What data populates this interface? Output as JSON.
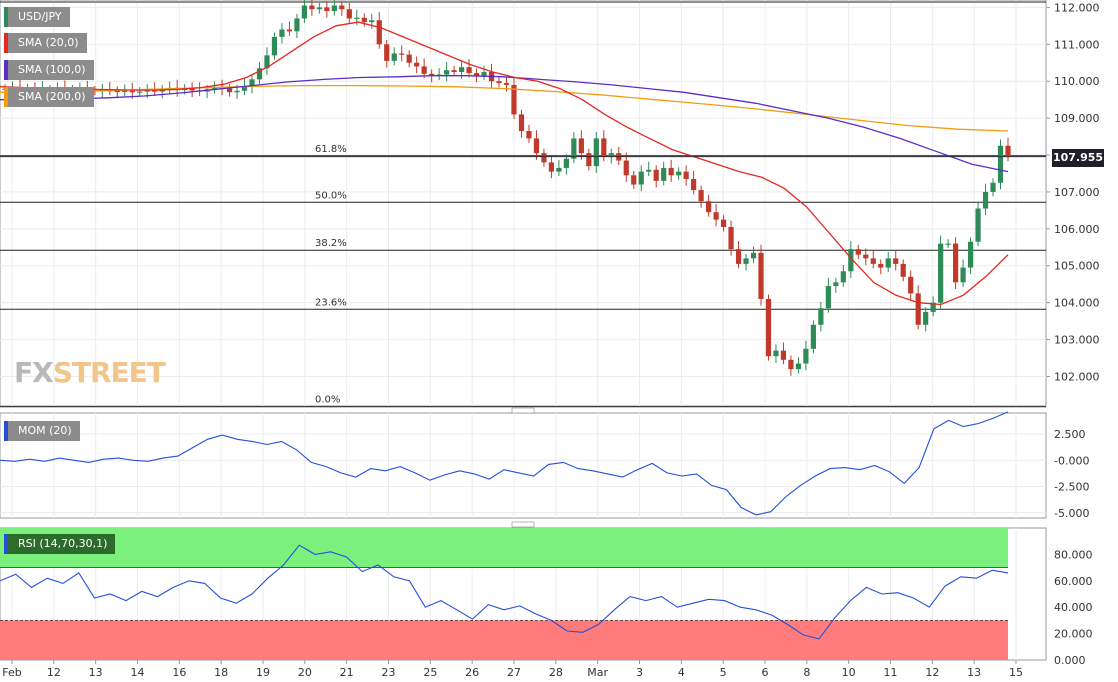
{
  "chart_data": {
    "type": "candlestick",
    "symbol": "USD/JPY",
    "last_price": "107.955",
    "price_axis": {
      "ylim": [
        101.2,
        112.2
      ],
      "ticks": [
        "112.000",
        "111.000",
        "110.000",
        "109.000",
        "108.000",
        "107.000",
        "106.000",
        "105.000",
        "104.000",
        "103.000",
        "102.000"
      ]
    },
    "x_labels": [
      "Feb",
      "12",
      "13",
      "14",
      "16",
      "18",
      "19",
      "20",
      "21",
      "23",
      "25",
      "26",
      "27",
      "28",
      "Mar",
      "3",
      "4",
      "5",
      "6",
      "8",
      "10",
      "11",
      "12",
      "13",
      "15"
    ],
    "legend": [
      "USD/JPY",
      "SMA (20,0)",
      "SMA (100,0)",
      "SMA (200,0)"
    ],
    "colors": {
      "up": "#2e8b57",
      "down": "#c0392b",
      "sma20": "#e5281f",
      "sma100": "#5a2dc8",
      "sma200": "#f39c12",
      "mom": "#2450d8",
      "rsi": "#2450d8"
    },
    "fibonacci": [
      {
        "label": "61.8%",
        "value": 107.98
      },
      {
        "label": "50.0%",
        "value": 106.72
      },
      {
        "label": "38.2%",
        "value": 105.42
      },
      {
        "label": "23.6%",
        "value": 103.82
      },
      {
        "label": "0.0%",
        "value": 101.18
      }
    ],
    "candles_close": [
      109.8,
      109.82,
      109.78,
      109.8,
      109.76,
      109.78,
      109.76,
      109.8,
      109.75,
      109.78,
      109.79,
      109.75,
      109.74,
      109.76,
      109.74,
      109.72,
      109.74,
      109.7,
      109.72,
      109.75,
      109.72,
      109.78,
      109.82,
      109.76,
      109.8,
      109.75,
      109.72,
      109.78,
      109.82,
      109.8,
      109.7,
      109.74,
      109.85,
      110.05,
      110.35,
      110.7,
      111.2,
      111.4,
      111.35,
      111.7,
      112.05,
      111.95,
      112.0,
      111.9,
      112.05,
      111.95,
      111.7,
      111.72,
      111.6,
      111.65,
      111.0,
      110.55,
      110.75,
      110.72,
      110.5,
      110.4,
      110.2,
      110.15,
      110.18,
      110.3,
      110.25,
      110.38,
      110.22,
      110.15,
      110.25,
      110.0,
      109.95,
      109.9,
      109.1,
      108.65,
      108.45,
      108.05,
      107.8,
      107.55,
      107.65,
      107.9,
      108.45,
      108.05,
      107.7,
      108.45,
      107.95,
      108.05,
      107.85,
      107.45,
      107.2,
      107.55,
      107.6,
      107.3,
      107.65,
      107.45,
      107.55,
      107.35,
      107.05,
      106.75,
      106.45,
      106.25,
      106.05,
      105.45,
      105.05,
      105.2,
      105.35,
      104.1,
      102.55,
      102.7,
      102.45,
      102.2,
      102.35,
      102.75,
      103.4,
      103.85,
      104.45,
      104.55,
      104.85,
      105.45,
      105.3,
      105.2,
      105.05,
      104.95,
      105.2,
      105.05,
      104.7,
      104.25,
      103.4,
      103.75,
      104.0,
      105.6,
      105.6,
      104.55,
      104.95,
      105.65,
      106.55,
      107.0,
      107.25,
      108.25,
      107.95
    ],
    "sma20": [
      109.85,
      109.83,
      109.8,
      109.79,
      109.78,
      109.77,
      109.76,
      109.76,
      109.78,
      109.83,
      109.92,
      110.1,
      110.4,
      110.8,
      111.2,
      111.5,
      111.6,
      111.45,
      111.2,
      110.95,
      110.7,
      110.45,
      110.25,
      110.1,
      110.0,
      109.8,
      109.5,
      109.1,
      108.75,
      108.45,
      108.15,
      107.95,
      107.75,
      107.55,
      107.4,
      107.1,
      106.6,
      105.9,
      105.2,
      104.55,
      104.2,
      104.0,
      103.95,
      104.2,
      104.7,
      105.3
    ],
    "sma100": [
      109.5,
      109.5,
      109.52,
      109.55,
      109.6,
      109.68,
      109.78,
      109.88,
      109.98,
      110.05,
      110.1,
      110.12,
      110.15,
      110.15,
      110.12,
      110.05,
      109.98,
      109.9,
      109.8,
      109.7,
      109.55,
      109.4,
      109.2,
      109.0,
      108.75,
      108.45,
      108.1,
      107.75,
      107.55
    ],
    "sma200": [
      109.7,
      109.72,
      109.74,
      109.78,
      109.82,
      109.86,
      109.88,
      109.88,
      109.87,
      109.85,
      109.8,
      109.72,
      109.62,
      109.5,
      109.38,
      109.25,
      109.1,
      108.95,
      108.8,
      108.7,
      108.65
    ],
    "momentum": {
      "label": "MOM (20)",
      "ylim": [
        -5.5,
        4.5
      ],
      "ticks": [
        "2.500",
        "-0.000",
        "-2.500",
        "-5.000"
      ],
      "values": [
        0.0,
        -0.1,
        0.1,
        -0.1,
        0.2,
        0.0,
        -0.2,
        0.1,
        0.2,
        0.0,
        -0.1,
        0.2,
        0.4,
        1.2,
        2.0,
        2.4,
        2.0,
        1.8,
        1.5,
        1.8,
        1.0,
        -0.2,
        -0.6,
        -1.2,
        -1.6,
        -0.8,
        -1.0,
        -0.6,
        -1.2,
        -1.9,
        -1.4,
        -1.0,
        -1.3,
        -1.8,
        -0.9,
        -1.2,
        -1.5,
        -0.4,
        -0.2,
        -0.8,
        -1.0,
        -1.3,
        -1.6,
        -0.9,
        -0.3,
        -1.2,
        -1.5,
        -1.3,
        -2.4,
        -2.8,
        -4.5,
        -5.2,
        -4.9,
        -3.5,
        -2.4,
        -1.5,
        -0.8,
        -0.7,
        -0.9,
        -0.5,
        -1.1,
        -2.2,
        -0.7,
        3.0,
        3.8,
        3.2,
        3.5,
        4.0,
        4.6
      ]
    },
    "rsi": {
      "label": "RSI (14,70,30,1)",
      "ylim": [
        0,
        100
      ],
      "overbought": 70,
      "oversold": 30,
      "ticks": [
        "80.000",
        "60.000",
        "40.000",
        "20.000",
        "0.000"
      ],
      "values": [
        60,
        65,
        55,
        62,
        58,
        66,
        47,
        50,
        45,
        52,
        48,
        55,
        60,
        58,
        47,
        43,
        50,
        62,
        72,
        87,
        80,
        82,
        78,
        67,
        72,
        63,
        60,
        40,
        45,
        38,
        31,
        42,
        38,
        41,
        35,
        30,
        22,
        21,
        27,
        38,
        48,
        45,
        48,
        40,
        43,
        46,
        45,
        40,
        38,
        34,
        27,
        19,
        16,
        32,
        45,
        55,
        50,
        51,
        47,
        40,
        56,
        63,
        62,
        68,
        66
      ]
    }
  }
}
